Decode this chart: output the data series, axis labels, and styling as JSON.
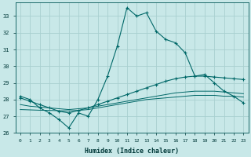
{
  "background_color": "#c8e8e8",
  "grid_color": "#a8d0d0",
  "line_color": "#006868",
  "x_label": "Humidex (Indice chaleur)",
  "x_ticks": [
    0,
    1,
    2,
    3,
    4,
    5,
    6,
    7,
    8,
    9,
    10,
    11,
    12,
    13,
    14,
    15,
    16,
    17,
    18,
    19,
    20,
    21,
    22,
    23
  ],
  "ylim": [
    26,
    33.8
  ],
  "xlim": [
    -0.5,
    23.5
  ],
  "y_ticks": [
    26,
    27,
    28,
    29,
    30,
    31,
    32,
    33
  ],
  "series1_x": [
    0,
    1,
    2,
    3,
    4,
    5,
    6,
    7,
    8,
    9,
    10,
    11,
    12,
    13,
    14,
    15,
    16,
    17,
    18,
    19,
    20,
    21,
    22,
    23
  ],
  "series1_y": [
    28.2,
    28.0,
    27.5,
    27.2,
    26.8,
    26.3,
    27.2,
    27.0,
    28.0,
    29.4,
    31.2,
    33.5,
    33.0,
    33.2,
    32.1,
    31.6,
    31.4,
    30.8,
    29.4,
    29.5,
    29.0,
    28.5,
    28.2,
    27.8
  ],
  "series2_x": [
    0,
    1,
    2,
    3,
    4,
    5,
    6,
    7,
    8,
    9,
    10,
    11,
    12,
    13,
    14,
    15,
    16,
    17,
    18,
    19,
    20,
    21,
    22,
    23
  ],
  "series2_y": [
    28.1,
    27.9,
    27.7,
    27.5,
    27.3,
    27.2,
    27.35,
    27.5,
    27.7,
    27.9,
    28.1,
    28.3,
    28.5,
    28.7,
    28.9,
    29.1,
    29.25,
    29.35,
    29.4,
    29.4,
    29.35,
    29.3,
    29.25,
    29.2
  ],
  "series3_x": [
    0,
    1,
    2,
    3,
    4,
    5,
    6,
    7,
    8,
    9,
    10,
    11,
    12,
    13,
    14,
    15,
    16,
    17,
    18,
    19,
    20,
    21,
    22,
    23
  ],
  "series3_y": [
    27.7,
    27.6,
    27.55,
    27.5,
    27.45,
    27.4,
    27.45,
    27.5,
    27.6,
    27.7,
    27.8,
    27.9,
    28.0,
    28.1,
    28.2,
    28.3,
    28.4,
    28.45,
    28.5,
    28.5,
    28.5,
    28.45,
    28.4,
    28.35
  ],
  "series4_x": [
    0,
    1,
    2,
    3,
    4,
    5,
    6,
    7,
    8,
    9,
    10,
    11,
    12,
    13,
    14,
    15,
    16,
    17,
    18,
    19,
    20,
    21,
    22,
    23
  ],
  "series4_y": [
    27.4,
    27.38,
    27.36,
    27.35,
    27.33,
    27.32,
    27.35,
    27.4,
    27.5,
    27.6,
    27.7,
    27.8,
    27.9,
    28.0,
    28.05,
    28.1,
    28.15,
    28.2,
    28.25,
    28.25,
    28.25,
    28.2,
    28.2,
    28.15
  ]
}
